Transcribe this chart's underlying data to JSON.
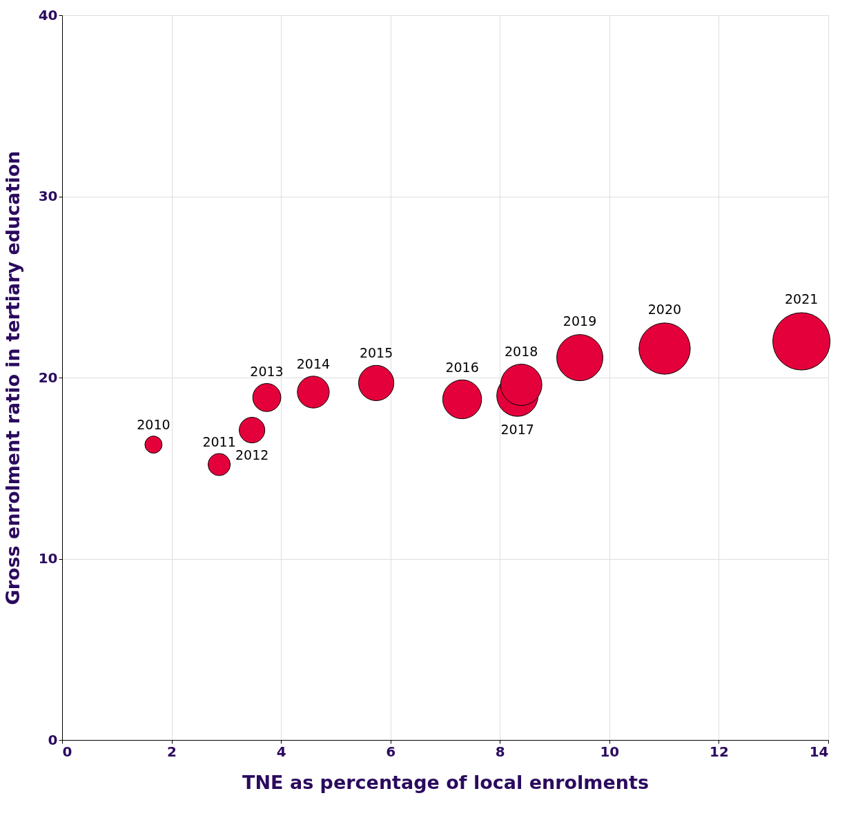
{
  "chart_data": {
    "type": "bubble",
    "xlabel": "TNE as percentage of local enrolments",
    "ylabel": "Gross enrolment ratio in tertiary education",
    "x": [
      1.67,
      2.87,
      3.47,
      3.74,
      4.59,
      5.74,
      7.31,
      8.32,
      8.39,
      9.46,
      11.01,
      13.51
    ],
    "series": [
      {
        "color": "#e4003b",
        "values": [
          16.3,
          15.2,
          17.1,
          18.9,
          19.2,
          19.7,
          18.8,
          19.0,
          19.6,
          21.1,
          21.6,
          22.0
        ],
        "sizes": [
          0.09,
          0.15,
          0.2,
          0.24,
          0.31,
          0.38,
          0.46,
          0.52,
          0.52,
          0.65,
          0.8,
          1
        ]
      }
    ],
    "annotations": [
      {
        "text": "2010",
        "x": 1.67,
        "y": 16.3
      },
      {
        "text": "2011",
        "x": 2.87,
        "y": 15.2
      },
      {
        "text": "2012",
        "x": 3.47,
        "y": 17.1
      },
      {
        "text": "2013",
        "x": 3.74,
        "y": 18.9
      },
      {
        "text": "2014",
        "x": 4.59,
        "y": 19.2
      },
      {
        "text": "2015",
        "x": 5.74,
        "y": 19.7
      },
      {
        "text": "2016",
        "x": 7.31,
        "y": 18.8
      },
      {
        "text": "2017",
        "x": 8.32,
        "y": 19.0
      },
      {
        "text": "2018",
        "x": 8.39,
        "y": 19.6
      },
      {
        "text": "2019",
        "x": 9.46,
        "y": 21.1
      },
      {
        "text": "2020",
        "x": 11.01,
        "y": 21.6
      },
      {
        "text": "2021",
        "x": 13.51,
        "y": 22.0
      }
    ],
    "xlim": [
      0,
      14
    ],
    "xticks": [
      0,
      2,
      4,
      6,
      8,
      10,
      12,
      14
    ],
    "ylim": [
      0,
      40
    ],
    "yticks": [
      0,
      10,
      20,
      30,
      40
    ],
    "grid": true
  }
}
